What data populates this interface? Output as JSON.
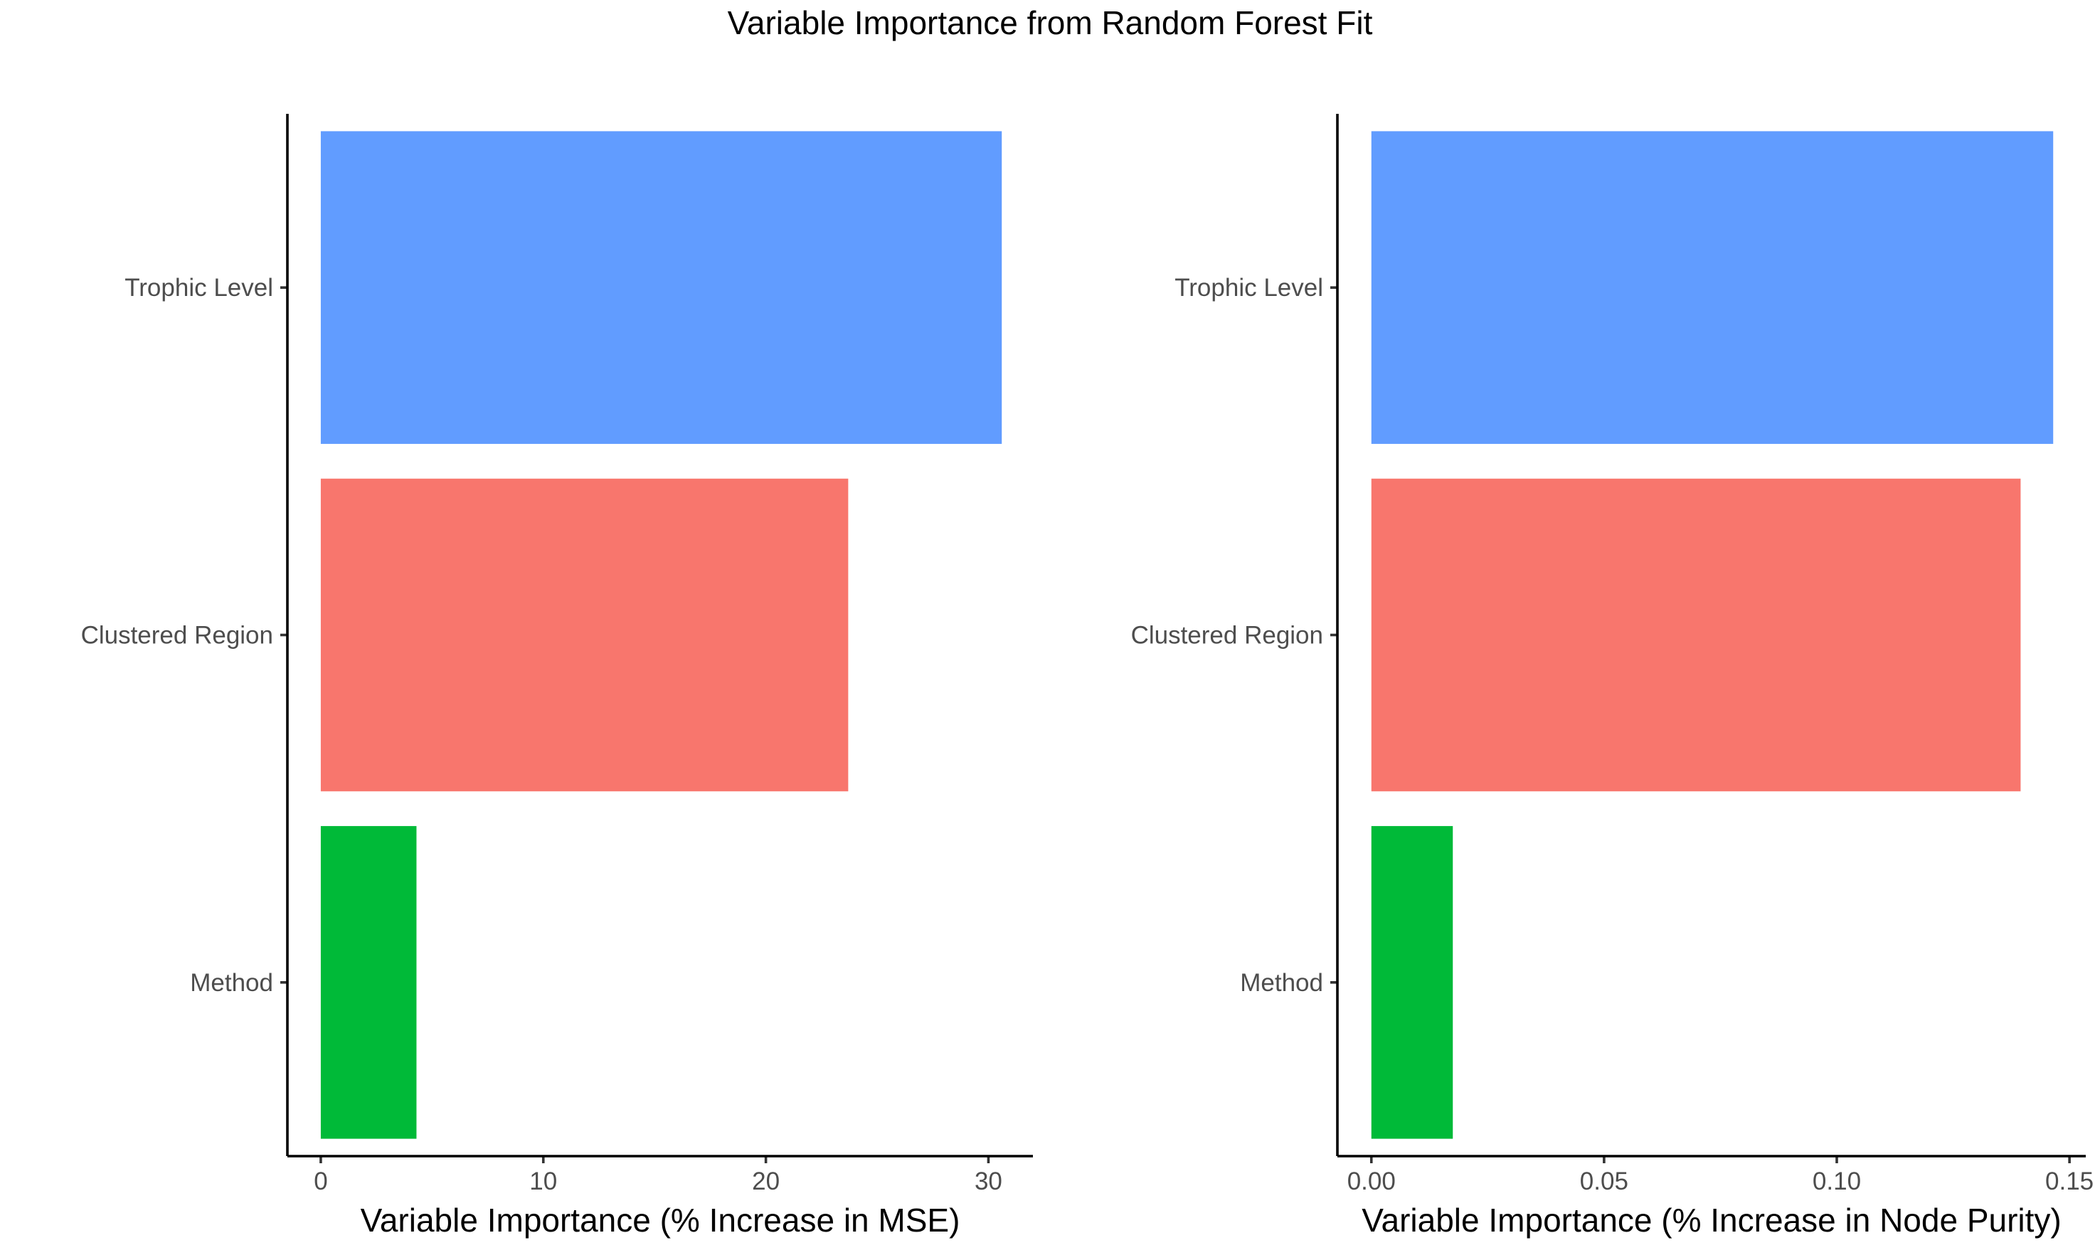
{
  "figure": {
    "title": "Variable Importance from Random Forest Fit"
  },
  "chart_data": [
    {
      "type": "bar",
      "orientation": "horizontal",
      "categories": [
        "Trophic Level",
        "Clustered Region",
        "Method"
      ],
      "values": [
        30.6,
        23.7,
        4.3
      ],
      "colors": [
        "#619CFF",
        "#F8766D",
        "#00BA38"
      ],
      "xlabel": "Variable Importance (% Increase in MSE)",
      "ylabel": "",
      "xlim": [
        -1.5,
        32.0
      ],
      "xticks": [
        0,
        10,
        20,
        30
      ],
      "xtick_labels": [
        "0",
        "10",
        "20",
        "30"
      ],
      "grid": false,
      "legend": "none"
    },
    {
      "type": "bar",
      "orientation": "horizontal",
      "categories": [
        "Trophic Level",
        "Clustered Region",
        "Method"
      ],
      "values": [
        0.1465,
        0.1395,
        0.0175
      ],
      "colors": [
        "#619CFF",
        "#F8766D",
        "#00BA38"
      ],
      "xlabel": "Variable Importance (% Increase in Node Purity)",
      "ylabel": "",
      "xlim": [
        -0.0073,
        0.1535
      ],
      "xticks": [
        0.0,
        0.05,
        0.1,
        0.15
      ],
      "xtick_labels": [
        "0.00",
        "0.05",
        "0.10",
        "0.15"
      ],
      "grid": false,
      "legend": "none"
    }
  ]
}
